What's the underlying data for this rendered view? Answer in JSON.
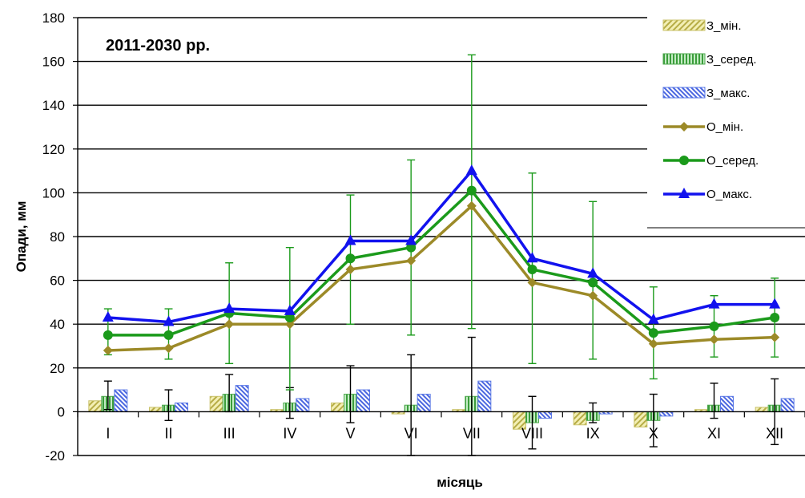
{
  "chart_data": {
    "type": "bar",
    "title": "2011-2030 рр.",
    "xlabel": "місяць",
    "ylabel": "Опади, мм",
    "ylim": [
      -20,
      180
    ],
    "ytick_step": 20,
    "grid": true,
    "legend_position": "top-right",
    "categories": [
      "I",
      "II",
      "III",
      "IV",
      "V",
      "VI",
      "VII",
      "VIII",
      "IX",
      "X",
      "XI",
      "XII"
    ],
    "bar_series": [
      {
        "name": "З_мін.",
        "values": [
          5,
          2,
          7,
          1,
          4,
          -1,
          1,
          -8,
          -6,
          -7,
          1,
          2
        ],
        "color": "#c9c26a",
        "pattern": "diagonal"
      },
      {
        "name": "З_серед.",
        "values": [
          7,
          3,
          8,
          4,
          8,
          3,
          7,
          -5,
          -4,
          -4,
          3,
          3
        ],
        "color": "#4ca84c",
        "pattern": "vertical"
      },
      {
        "name": "З_макс.",
        "values": [
          10,
          4,
          12,
          6,
          10,
          8,
          14,
          -3,
          -1,
          -2,
          7,
          6
        ],
        "color": "#5a78e6",
        "pattern": "diagonal-back"
      }
    ],
    "bar_error": {
      "series": "З_серед.",
      "low": [
        1,
        -4,
        0,
        -3,
        -5,
        -20,
        -20,
        -17,
        -5,
        -16,
        -3,
        -15
      ],
      "high": [
        14,
        10,
        17,
        11,
        21,
        26,
        34,
        7,
        4,
        8,
        13,
        15
      ],
      "color": "#000000"
    },
    "line_series": [
      {
        "name": "О_мін.",
        "values": [
          28,
          29,
          40,
          40,
          65,
          69,
          94,
          59,
          53,
          31,
          33,
          34
        ],
        "color": "#9c8a28",
        "marker": "diamond"
      },
      {
        "name": "О_серед.",
        "values": [
          35,
          35,
          45,
          43,
          70,
          75,
          101,
          65,
          59,
          36,
          39,
          43
        ],
        "color": "#1b9a1b",
        "marker": "circle"
      },
      {
        "name": "О_макс.",
        "values": [
          43,
          41,
          47,
          46,
          78,
          78,
          110,
          70,
          63,
          42,
          49,
          49
        ],
        "color": "#1212ee",
        "marker": "triangle"
      }
    ],
    "line_error": {
      "series": "О_серед.",
      "low": [
        26,
        24,
        22,
        10,
        40,
        35,
        38,
        22,
        24,
        15,
        25,
        25
      ],
      "high": [
        47,
        47,
        68,
        75,
        99,
        115,
        163,
        109,
        96,
        57,
        53,
        61
      ],
      "color": "#1b9a1b"
    }
  }
}
